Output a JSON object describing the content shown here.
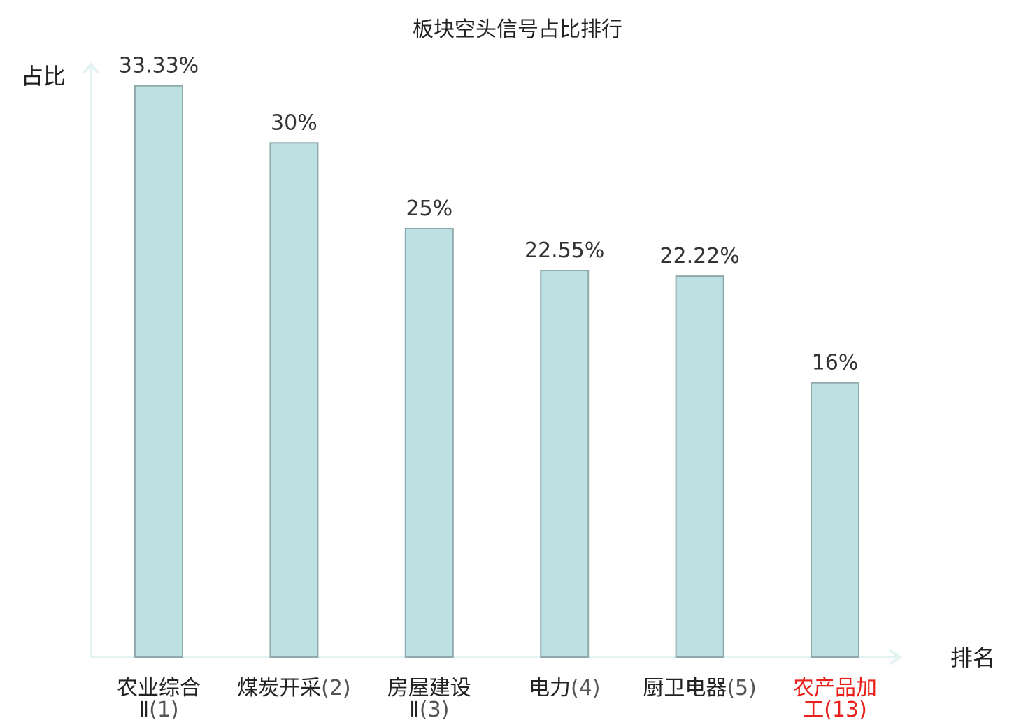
{
  "chart_data": {
    "type": "bar",
    "title": "板块空头信号占比排行",
    "ylabel": "占比",
    "xlabel": "排名",
    "ylim": [
      0,
      34.5
    ],
    "grid": false,
    "categories": [
      {
        "name_lines": [
          "农业综合",
          "Ⅱ"
        ],
        "rank": "(1)",
        "highlight": false
      },
      {
        "name_lines": [
          "煤炭开采"
        ],
        "rank": "(2)",
        "highlight": false
      },
      {
        "name_lines": [
          "房屋建设",
          "Ⅱ"
        ],
        "rank": "(3)",
        "highlight": false
      },
      {
        "name_lines": [
          "电力"
        ],
        "rank": "(4)",
        "highlight": false
      },
      {
        "name_lines": [
          "厨卫电器"
        ],
        "rank": "(5)",
        "highlight": false
      },
      {
        "name_lines": [
          "农产品加",
          "工"
        ],
        "rank": "(13)",
        "highlight": true
      }
    ],
    "values": [
      33.33,
      30,
      25,
      22.55,
      22.22,
      16
    ],
    "value_labels": [
      "33.33%",
      "30%",
      "25%",
      "22.55%",
      "22.22%",
      "16%"
    ],
    "colors": {
      "bar_fill": "#bde0e3",
      "bar_stroke": "#8fa9ac",
      "axis": "#e3f3f1",
      "highlight": "#e8211d"
    }
  }
}
